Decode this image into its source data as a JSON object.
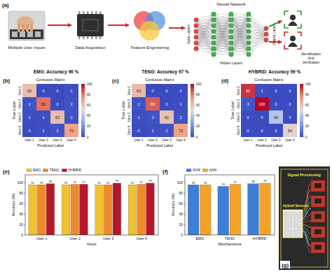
{
  "diagram": {
    "panel_label": "(a)",
    "steps": [
      "Multiple User Inputs",
      "Data Acquisition",
      "Feature Engineering"
    ],
    "network": {
      "title": "Neural Network",
      "input": "Input Layers",
      "hidden": "Hidden Layers",
      "output": "Output Layers"
    },
    "result": [
      "Identification",
      "And",
      "Verification"
    ]
  },
  "chart_data": [
    {
      "type": "heatmap",
      "annotations": [
        "(b)"
      ],
      "subtitle": "EMG: Accuracy 96 %",
      "title": "Confusion Matrix",
      "x_categories": [
        "User 1",
        "User 2",
        "User 3",
        "User 4"
      ],
      "y_categories": [
        "User 1",
        "User 2",
        "User 3",
        "User 4"
      ],
      "xlabel": "Predicted Label",
      "ylabel": "True Label",
      "cells": [
        [
          62,
          0,
          0,
          1
        ],
        [
          2,
          82,
          0,
          2
        ],
        [
          1,
          1,
          62,
          2
        ],
        [
          0,
          1,
          2,
          72
        ]
      ],
      "colorbar": {
        "range": [
          0,
          100
        ],
        "ticks": [
          0,
          20,
          40,
          60,
          80,
          100
        ]
      }
    },
    {
      "type": "heatmap",
      "annotations": [
        "(c)"
      ],
      "subtitle": "TENG: Accuracy 97 %",
      "title": "Confusion Matrix",
      "x_categories": [
        "User 1",
        "User 2",
        "User 3",
        "User 4"
      ],
      "y_categories": [
        "User 1",
        "User 2",
        "User 3",
        "User 4"
      ],
      "xlabel": "Predicted Label",
      "ylabel": "True Label",
      "cells": [
        [
          63,
          0,
          0,
          0
        ],
        [
          2,
          85,
          0,
          1
        ],
        [
          1,
          2,
          61,
          2
        ],
        [
          0,
          1,
          2,
          72
        ]
      ],
      "colorbar": {
        "range": [
          0,
          100
        ],
        "ticks": [
          0,
          20,
          40,
          60,
          80,
          100
        ]
      }
    },
    {
      "type": "heatmap",
      "annotations": [
        "(d)"
      ],
      "subtitle": "HYBRID: Accuracy 99 %",
      "title": "Confusion Matrix",
      "x_categories": [
        "User 1",
        "User 2",
        "User 3",
        "User 4"
      ],
      "y_categories": [
        "User 1",
        "User 2",
        "User 3",
        "User 4"
      ],
      "xlabel": "Predicted Label",
      "ylabel": "True Label",
      "cells": [
        [
          92,
          1,
          0,
          0
        ],
        [
          3,
          100,
          0,
          0
        ],
        [
          0,
          0,
          40,
          0
        ],
        [
          0,
          0,
          0,
          54
        ]
      ],
      "colorbar": {
        "range": [
          0,
          100
        ],
        "ticks": [
          0,
          20,
          40,
          60,
          80,
          100
        ]
      }
    },
    {
      "type": "bar",
      "annotations": [
        "(e)"
      ],
      "categories": [
        "User 1",
        "User 2",
        "User 3",
        "User 4"
      ],
      "series": [
        {
          "name": "EMG",
          "color": "#f2c12e",
          "values": [
            96,
            96,
            96,
            96
          ]
        },
        {
          "name": "TENG",
          "color": "#f0892a",
          "values": [
            96,
            97,
            96,
            97
          ]
        },
        {
          "name": "HYBRID",
          "color": "#b5172b",
          "values": [
            98,
            97,
            99,
            99
          ]
        }
      ],
      "xlabel": "Keys",
      "ylabel": "Accuracy (%)",
      "ylim": [
        0,
        115
      ],
      "yticks": [
        0,
        20,
        40,
        60,
        80,
        100
      ],
      "legend": "top",
      "data_labels": true
    },
    {
      "type": "bar",
      "annotations": [
        "(f)"
      ],
      "categories": [
        "EMG",
        "TENG",
        "HYBRID"
      ],
      "series": [
        {
          "name": "SVM",
          "color": "#3d7fd6",
          "values": [
            96,
            93,
            98
          ]
        },
        {
          "name": "ANN",
          "color": "#f5a328",
          "values": [
            96,
            97,
            99
          ]
        }
      ],
      "xlabel": "Mechanisms",
      "ylabel": "Accuracy (%)",
      "ylim": [
        0,
        115
      ],
      "yticks": [
        0,
        20,
        40,
        60,
        80,
        100
      ],
      "legend": "top",
      "data_labels": true
    }
  ],
  "photo": {
    "panel_label": "(g)",
    "labels": [
      "Signal Processing",
      "Hybrid Sensors"
    ]
  }
}
